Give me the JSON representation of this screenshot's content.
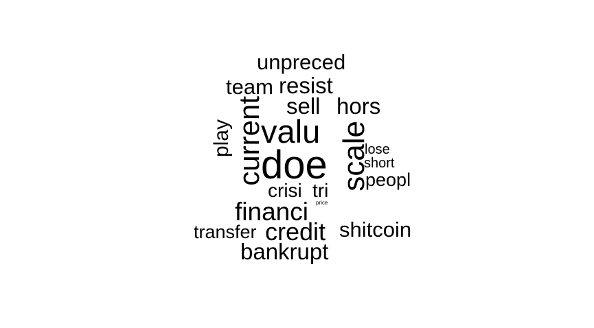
{
  "colors": {
    "background": "#ffffff",
    "text": "#000000"
  },
  "words": {
    "unpreced": "unpreced",
    "team": "team",
    "resist": "resist",
    "sell": "sell",
    "hors": "hors",
    "play": "play",
    "current": "current",
    "valu": "valu",
    "scale": "scale",
    "doe": "doe",
    "lose": "lose",
    "short": "short",
    "peopl": "peopl",
    "crisi": "crisi",
    "tri": "tri",
    "price": "price",
    "financi": "financi",
    "transfer": "transfer",
    "credit": "credit",
    "shitcoin": "shitcoin",
    "bankrupt": "bankrupt"
  }
}
